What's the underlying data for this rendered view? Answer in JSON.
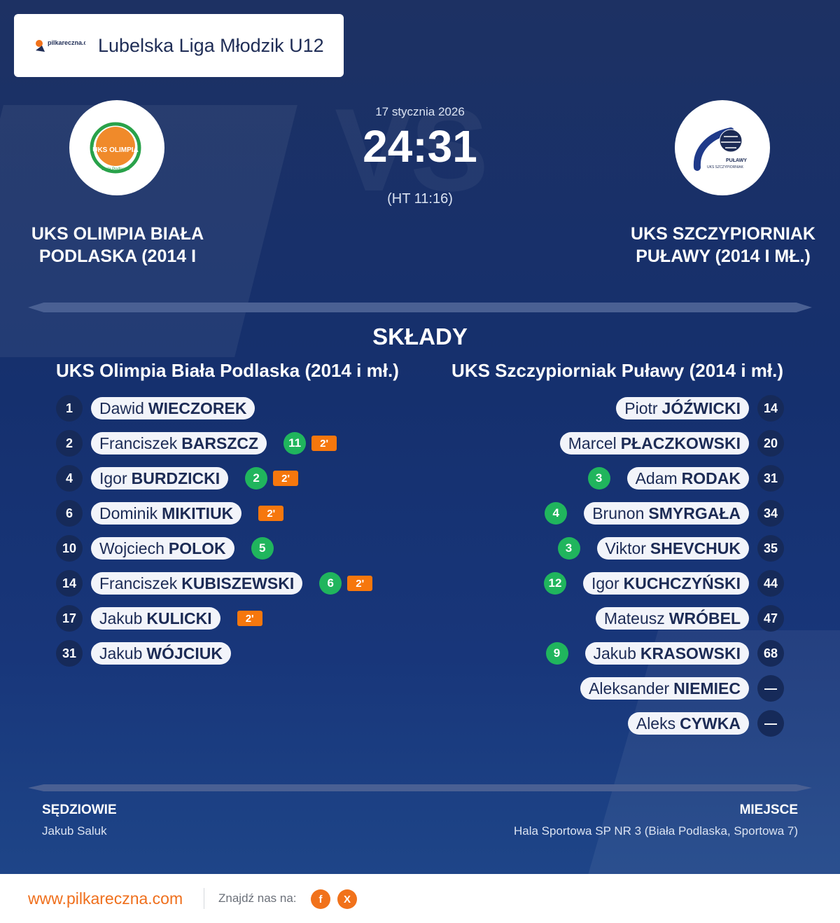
{
  "header": {
    "logo_text": "pilkareczna.com",
    "league": "Lubelska Liga Młodzik U12"
  },
  "match": {
    "date": "17 stycznia 2026",
    "score": "24:31",
    "halftime": "(HT 11:16)",
    "watermark": "VS",
    "home_team": "UKS OLIMPIA BIAŁA PODLASKA (2014 I",
    "away_team": "UKS SZCZYPIORNIAK PUŁAWY (2014 I MŁ.)",
    "home_logo_text": "UKS OLIMPIA",
    "home_logo_sub": "Biała Podlaska",
    "away_logo_text": "PUŁAWY",
    "away_logo_sub": "UKS SZCZYPIORNIAK"
  },
  "lineups": {
    "title": "SKŁADY",
    "home_heading": "UKS Olimpia Biała Podlaska (2014 i mł.)",
    "away_heading": "UKS Szczypiorniak Puławy (2014 i mł.)",
    "home_players": [
      {
        "number": "1",
        "first": "Dawid",
        "last": "WIECZOREK",
        "goals": "",
        "penalty": ""
      },
      {
        "number": "2",
        "first": "Franciszek",
        "last": "BARSZCZ",
        "goals": "11",
        "penalty": "2'"
      },
      {
        "number": "4",
        "first": "Igor",
        "last": "BURDZICKI",
        "goals": "2",
        "penalty": "2'"
      },
      {
        "number": "6",
        "first": "Dominik",
        "last": "MIKITIUK",
        "goals": "",
        "penalty": "2'"
      },
      {
        "number": "10",
        "first": "Wojciech",
        "last": "POLOK",
        "goals": "5",
        "penalty": ""
      },
      {
        "number": "14",
        "first": "Franciszek",
        "last": "KUBISZEWSKI",
        "goals": "6",
        "penalty": "2'"
      },
      {
        "number": "17",
        "first": "Jakub",
        "last": "KULICKI",
        "goals": "",
        "penalty": "2'"
      },
      {
        "number": "31",
        "first": "Jakub",
        "last": "WÓJCIUK",
        "goals": "",
        "penalty": ""
      }
    ],
    "away_players": [
      {
        "number": "14",
        "first": "Piotr",
        "last": "JÓŹWICKI",
        "goals": ""
      },
      {
        "number": "20",
        "first": "Marcel",
        "last": "PŁACZKOWSKI",
        "goals": ""
      },
      {
        "number": "31",
        "first": "Adam",
        "last": "RODAK",
        "goals": "3"
      },
      {
        "number": "34",
        "first": "Brunon",
        "last": "SMYRGAŁA",
        "goals": "4"
      },
      {
        "number": "35",
        "first": "Viktor",
        "last": "SHEVCHUK",
        "goals": "3"
      },
      {
        "number": "44",
        "first": "Igor",
        "last": "KUCHCZYŃSKI",
        "goals": "12"
      },
      {
        "number": "47",
        "first": "Mateusz",
        "last": "WRÓBEL",
        "goals": ""
      },
      {
        "number": "68",
        "first": "Jakub",
        "last": "KRASOWSKI",
        "goals": "9"
      },
      {
        "number": "—",
        "first": "Aleksander",
        "last": "NIEMIEC",
        "goals": ""
      },
      {
        "number": "—",
        "first": "Aleks",
        "last": "CYWKA",
        "goals": ""
      }
    ]
  },
  "officials": {
    "label": "SĘDZIOWIE",
    "value": "Jakub Saluk"
  },
  "venue": {
    "label": "MIEJSCE",
    "value": "Hala Sportowa SP NR 3 (Biała Podlaska, Sportowa 7)"
  },
  "footer": {
    "url": "www.pilkareczna.com",
    "find_us": "Znajdź nas na:",
    "facebook": "f",
    "x": "X"
  },
  "colors": {
    "background": "#15306e",
    "goals": "#20b55d",
    "penalty": "#f6770d",
    "accent": "#ef6f1c"
  }
}
